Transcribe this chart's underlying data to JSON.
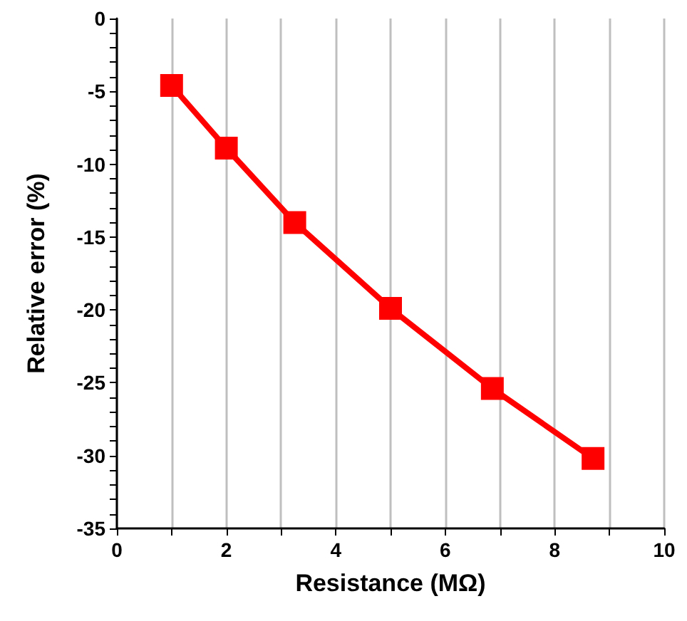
{
  "chart_data": {
    "type": "line",
    "xlabel": "Resistance (MΩ)",
    "ylabel": "Relative error (%)",
    "x": [
      1,
      2,
      3.25,
      5,
      6.86,
      8.7
    ],
    "series": [
      {
        "color": "#ff0000",
        "values": [
          -4.6,
          -8.9,
          -14.0,
          -19.9,
          -25.4,
          -30.2
        ]
      }
    ],
    "xlim": [
      0,
      10
    ],
    "xticks": [
      0,
      {
        "value": 1,
        "label": null
      },
      2,
      {
        "value": 3,
        "label": null
      },
      4,
      {
        "value": 5,
        "label": null
      },
      6,
      {
        "value": 7,
        "label": null
      },
      8,
      {
        "value": 9,
        "label": null
      },
      10
    ],
    "ylim": [
      -35,
      0
    ],
    "yticks": [
      -35,
      {
        "value": -34,
        "label": null
      },
      {
        "value": -33,
        "label": null
      },
      {
        "value": -32,
        "label": null
      },
      {
        "value": -31,
        "label": null
      },
      -30,
      {
        "value": -29,
        "label": null
      },
      {
        "value": -28,
        "label": null
      },
      {
        "value": -27,
        "label": null
      },
      {
        "value": -26,
        "label": null
      },
      -25,
      {
        "value": -24,
        "label": null
      },
      {
        "value": -23,
        "label": null
      },
      {
        "value": -22,
        "label": null
      },
      {
        "value": -21,
        "label": null
      },
      -20,
      {
        "value": -19,
        "label": null
      },
      {
        "value": -18,
        "label": null
      },
      {
        "value": -17,
        "label": null
      },
      {
        "value": -16,
        "label": null
      },
      -15,
      {
        "value": -14,
        "label": null
      },
      {
        "value": -13,
        "label": null
      },
      {
        "value": -12,
        "label": null
      },
      {
        "value": -11,
        "label": null
      },
      -10,
      {
        "value": -9,
        "label": null
      },
      {
        "value": -8,
        "label": null
      },
      {
        "value": -7,
        "label": null
      },
      {
        "value": -6,
        "label": null
      },
      -5,
      {
        "value": -4,
        "label": null
      },
      {
        "value": -3,
        "label": null
      },
      {
        "value": -2,
        "label": null
      },
      {
        "value": -1,
        "label": null
      },
      0
    ],
    "grid": "x",
    "marker": "square",
    "line_style": "solid"
  }
}
